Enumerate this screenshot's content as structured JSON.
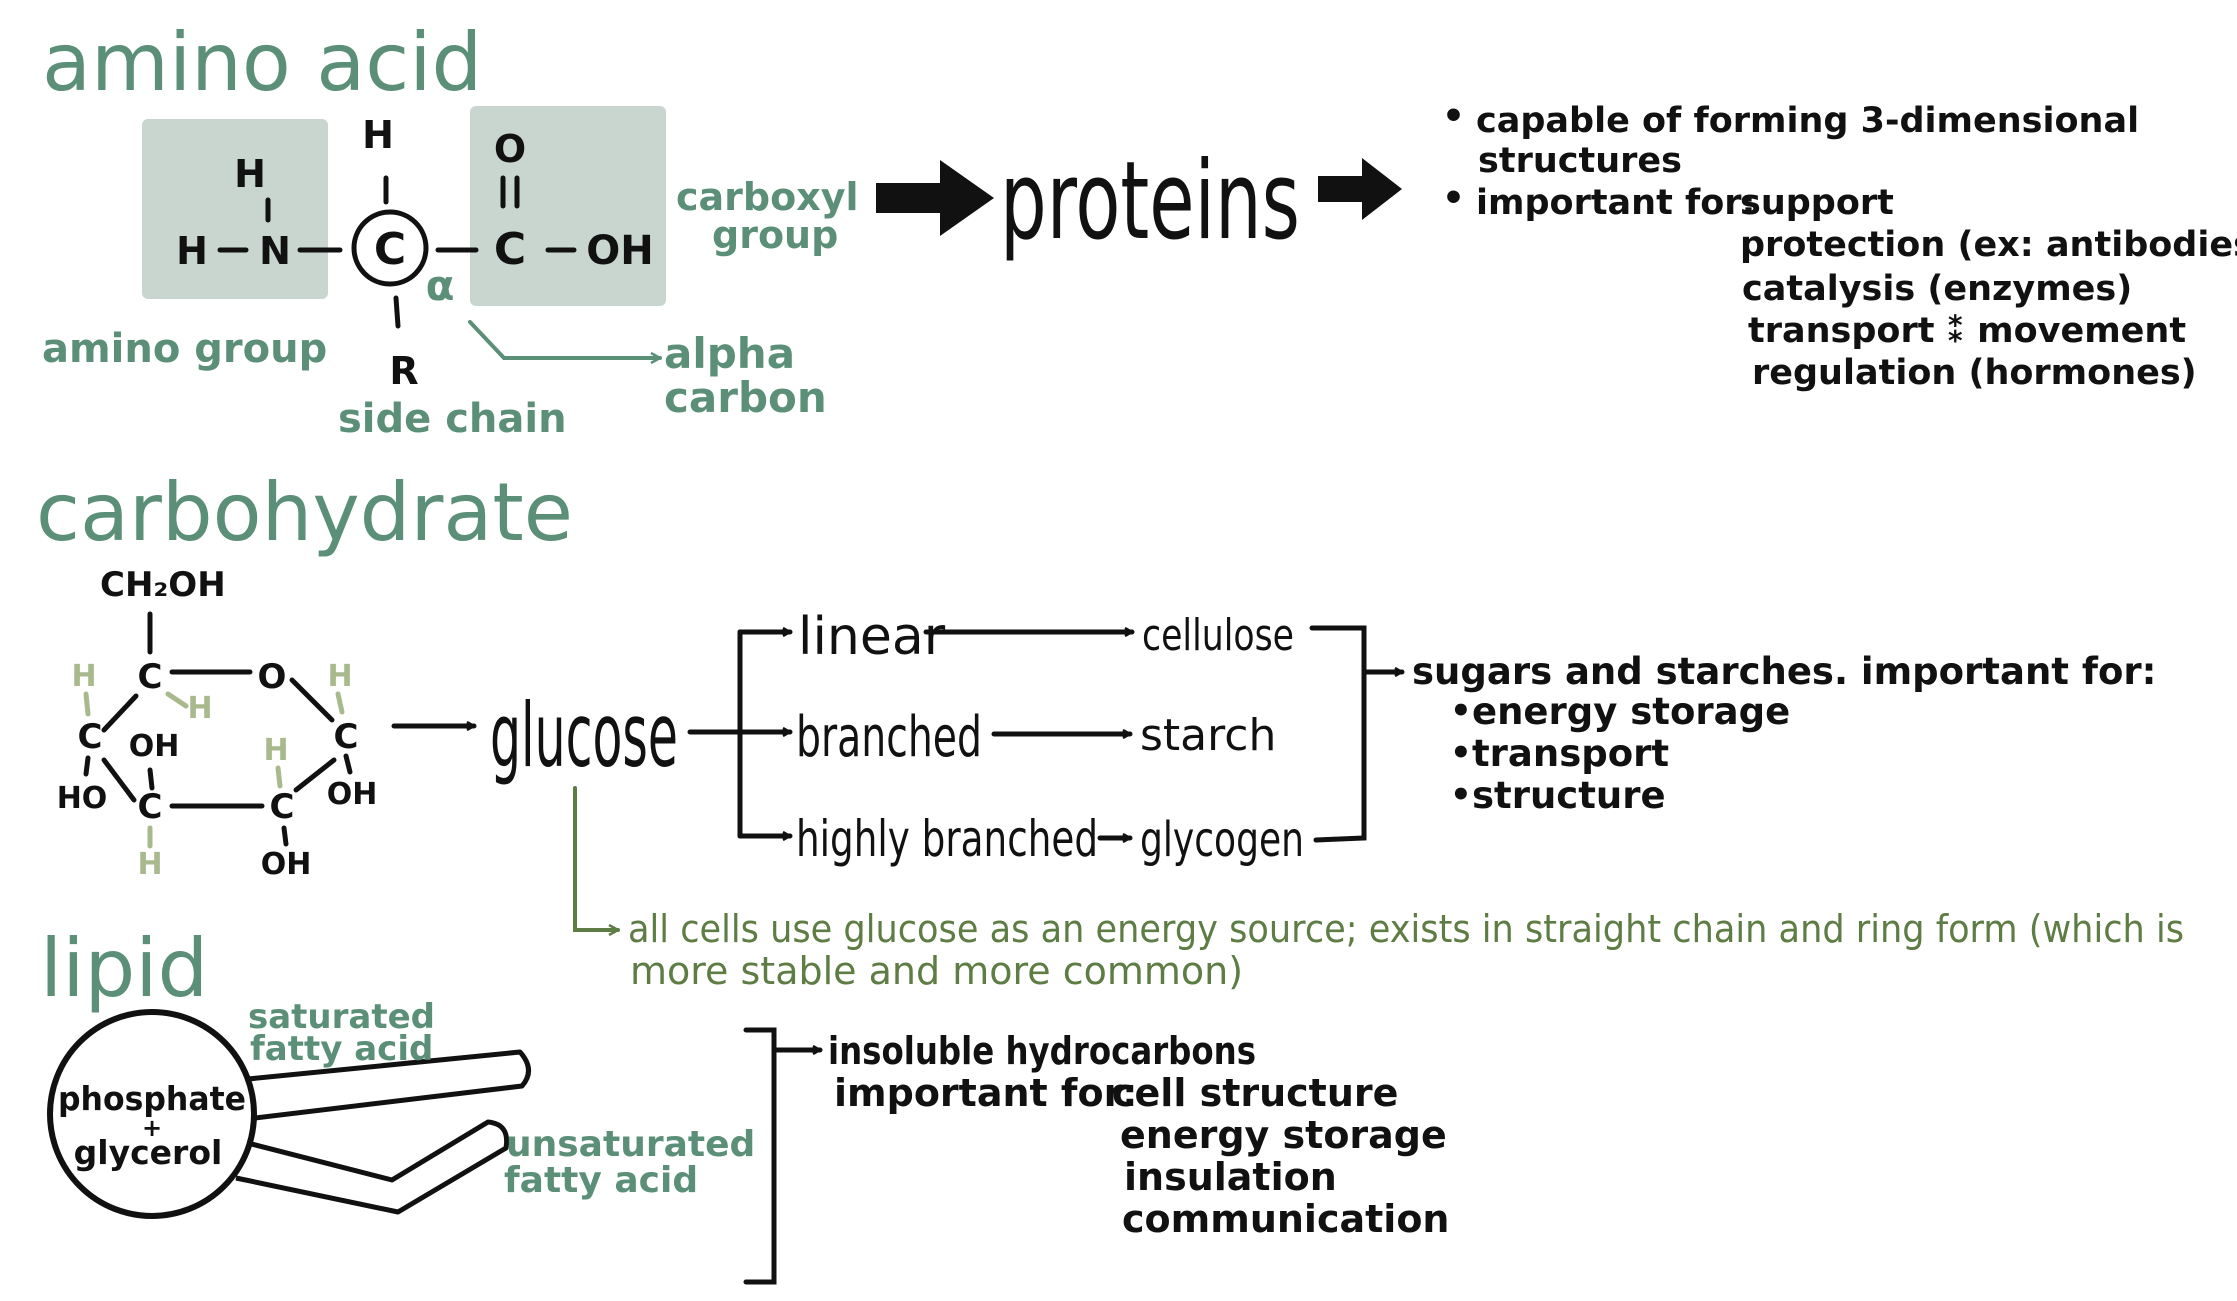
{
  "colors": {
    "title_green": "#5b8f78",
    "highlight_box": "#c8d6cf",
    "hydrogen_faded": "#a9b98e",
    "olive_note": "#5e7d45",
    "ink": "#111111"
  },
  "amino_acid": {
    "title": "amino acid",
    "atoms": {
      "h_top": "H",
      "h_amino_top": "H",
      "h_amino_left": "H",
      "n": "N",
      "c_alpha": "C",
      "r": "R",
      "o": "O",
      "c_carboxyl": "C",
      "oh": "OH",
      "alpha_symbol": "α",
      "bond_dash": "–",
      "double_bond": "=",
      "bond_vertical": "I"
    },
    "labels": {
      "amino_group": "amino group",
      "carboxyl_group_line1": "carboxyl",
      "carboxyl_group_line2": "group",
      "alpha_carbon_line1": "alpha",
      "alpha_carbon_line2": "carbon",
      "side_chain": "side chain"
    },
    "product": "proteins",
    "notes": {
      "bullet_1_line1": "capable of forming 3-dimensional",
      "bullet_1_line2": "structures",
      "bullet_2_lead": "important for:",
      "uses": [
        "support",
        "protection (ex: antibodies)",
        "catalysis (enzymes)",
        "transport ⁑ movement",
        "regulation (hormones)"
      ],
      "bullet_symbol": "•"
    }
  },
  "carbohydrate": {
    "title": "carbohydrate",
    "atoms": {
      "ch2oh": "CH₂OH",
      "c": "C",
      "o": "O",
      "h": "H",
      "oh": "OH",
      "ho": "HO"
    },
    "product": "glucose",
    "branches": [
      {
        "form": "linear",
        "polymer": "cellulose"
      },
      {
        "form": "branched",
        "polymer": "starch"
      },
      {
        "form": "highly branched",
        "polymer": "glycogen"
      }
    ],
    "summary": {
      "lead": "sugars and starches. important for:",
      "uses": [
        "energy storage",
        "transport",
        "structure"
      ]
    },
    "note_line1": "all cells use glucose as an energy source; exists in straight chain and ring form (which is",
    "note_line2": "more stable and more common)"
  },
  "lipid": {
    "title": "lipid",
    "head_line1": "phosphate",
    "head_plus": "+",
    "head_line2": "glycerol",
    "saturated_line1": "saturated",
    "saturated_line2": "fatty acid",
    "unsaturated_line1": "unsaturated",
    "unsaturated_line2": "fatty acid",
    "notes": {
      "line1": "insoluble hydrocarbons",
      "lead": "important for:",
      "uses": [
        "cell structure",
        "energy storage",
        "insulation",
        "communication"
      ]
    }
  }
}
